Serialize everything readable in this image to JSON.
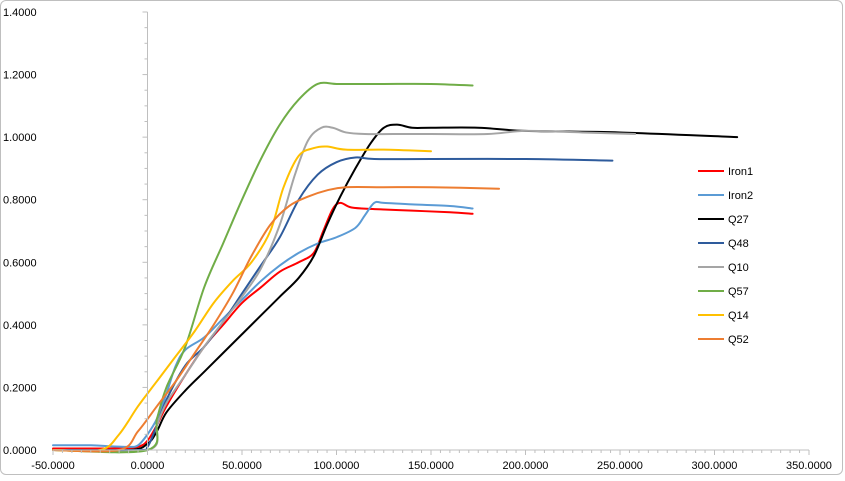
{
  "chart_data": {
    "type": "line",
    "title": "",
    "xlabel": "",
    "ylabel": "",
    "xlim": [
      -50,
      350
    ],
    "ylim": [
      0,
      1.4
    ],
    "x_ticks": [
      "-50.0000",
      "0.0000",
      "50.0000",
      "100.0000",
      "150.0000",
      "200.0000",
      "250.0000",
      "300.0000",
      "350.0000"
    ],
    "y_ticks": [
      "0.0000",
      "0.2000",
      "0.4000",
      "0.6000",
      "0.8000",
      "1.0000",
      "1.2000",
      "1.4000"
    ],
    "grid": false,
    "legend_position": "right",
    "series": [
      {
        "name": "Iron1",
        "color": "#ff0000",
        "points": [
          [
            -50,
            0.005
          ],
          [
            -15,
            0.005
          ],
          [
            -5,
            0.01
          ],
          [
            0,
            0.03
          ],
          [
            5,
            0.08
          ],
          [
            10,
            0.14
          ],
          [
            20,
            0.24
          ],
          [
            30,
            0.33
          ],
          [
            40,
            0.4
          ],
          [
            50,
            0.47
          ],
          [
            60,
            0.52
          ],
          [
            70,
            0.57
          ],
          [
            80,
            0.6
          ],
          [
            88,
            0.63
          ],
          [
            93,
            0.7
          ],
          [
            98,
            0.77
          ],
          [
            102,
            0.79
          ],
          [
            108,
            0.775
          ],
          [
            120,
            0.77
          ],
          [
            140,
            0.765
          ],
          [
            160,
            0.76
          ],
          [
            172,
            0.755
          ]
        ]
      },
      {
        "name": "Iron2",
        "color": "#5b9bd5",
        "points": [
          [
            -50,
            0.015
          ],
          [
            -30,
            0.015
          ],
          [
            -20,
            0.012
          ],
          [
            -10,
            0.01
          ],
          [
            -5,
            0.015
          ],
          [
            0,
            0.05
          ],
          [
            5,
            0.1
          ],
          [
            10,
            0.18
          ],
          [
            15,
            0.27
          ],
          [
            20,
            0.32
          ],
          [
            30,
            0.36
          ],
          [
            40,
            0.42
          ],
          [
            50,
            0.48
          ],
          [
            60,
            0.54
          ],
          [
            70,
            0.59
          ],
          [
            80,
            0.63
          ],
          [
            90,
            0.66
          ],
          [
            100,
            0.68
          ],
          [
            110,
            0.71
          ],
          [
            115,
            0.75
          ],
          [
            120,
            0.79
          ],
          [
            125,
            0.79
          ],
          [
            140,
            0.785
          ],
          [
            160,
            0.78
          ],
          [
            172,
            0.772
          ]
        ]
      },
      {
        "name": "Q27",
        "color": "#000000",
        "points": [
          [
            -50,
            0.0
          ],
          [
            -10,
            0.0
          ],
          [
            0,
            0.02
          ],
          [
            5,
            0.06
          ],
          [
            10,
            0.12
          ],
          [
            20,
            0.19
          ],
          [
            30,
            0.25
          ],
          [
            40,
            0.31
          ],
          [
            50,
            0.37
          ],
          [
            60,
            0.43
          ],
          [
            70,
            0.49
          ],
          [
            80,
            0.55
          ],
          [
            88,
            0.62
          ],
          [
            95,
            0.72
          ],
          [
            102,
            0.81
          ],
          [
            110,
            0.9
          ],
          [
            118,
            0.98
          ],
          [
            125,
            1.03
          ],
          [
            132,
            1.04
          ],
          [
            140,
            1.03
          ],
          [
            150,
            1.03
          ],
          [
            175,
            1.03
          ],
          [
            200,
            1.02
          ],
          [
            250,
            1.015
          ],
          [
            312,
            1.0
          ]
        ]
      },
      {
        "name": "Q48",
        "color": "#2e5b9c",
        "points": [
          [
            -50,
            0.0
          ],
          [
            -5,
            0.0
          ],
          [
            0,
            0.01
          ],
          [
            5,
            0.08
          ],
          [
            10,
            0.16
          ],
          [
            20,
            0.27
          ],
          [
            30,
            0.33
          ],
          [
            40,
            0.41
          ],
          [
            50,
            0.5
          ],
          [
            60,
            0.59
          ],
          [
            70,
            0.68
          ],
          [
            80,
            0.8
          ],
          [
            90,
            0.88
          ],
          [
            100,
            0.92
          ],
          [
            110,
            0.935
          ],
          [
            120,
            0.93
          ],
          [
            150,
            0.93
          ],
          [
            200,
            0.93
          ],
          [
            246,
            0.925
          ]
        ]
      },
      {
        "name": "Q10",
        "color": "#a5a5a5",
        "points": [
          [
            -50,
            0.0
          ],
          [
            0,
            0.0
          ],
          [
            5,
            0.08
          ],
          [
            10,
            0.15
          ],
          [
            20,
            0.24
          ],
          [
            30,
            0.33
          ],
          [
            40,
            0.41
          ],
          [
            50,
            0.49
          ],
          [
            60,
            0.58
          ],
          [
            70,
            0.72
          ],
          [
            78,
            0.88
          ],
          [
            85,
            0.99
          ],
          [
            92,
            1.03
          ],
          [
            98,
            1.03
          ],
          [
            105,
            1.015
          ],
          [
            115,
            1.01
          ],
          [
            130,
            1.01
          ],
          [
            150,
            1.01
          ],
          [
            180,
            1.01
          ],
          [
            200,
            1.02
          ],
          [
            230,
            1.015
          ],
          [
            258,
            1.01
          ]
        ]
      },
      {
        "name": "Q57",
        "color": "#70ad47",
        "points": [
          [
            -50,
            0.0
          ],
          [
            0,
            0.0
          ],
          [
            5,
            0.1
          ],
          [
            10,
            0.2
          ],
          [
            20,
            0.33
          ],
          [
            30,
            0.52
          ],
          [
            40,
            0.66
          ],
          [
            50,
            0.8
          ],
          [
            60,
            0.93
          ],
          [
            70,
            1.04
          ],
          [
            80,
            1.12
          ],
          [
            90,
            1.17
          ],
          [
            100,
            1.17
          ],
          [
            110,
            1.17
          ],
          [
            125,
            1.17
          ],
          [
            150,
            1.17
          ],
          [
            172,
            1.165
          ]
        ]
      },
      {
        "name": "Q14",
        "color": "#ffc000",
        "points": [
          [
            -50,
            0.0
          ],
          [
            -25,
            0.0
          ],
          [
            -15,
            0.05
          ],
          [
            -5,
            0.14
          ],
          [
            5,
            0.22
          ],
          [
            15,
            0.3
          ],
          [
            25,
            0.38
          ],
          [
            35,
            0.47
          ],
          [
            45,
            0.54
          ],
          [
            55,
            0.6
          ],
          [
            65,
            0.7
          ],
          [
            72,
            0.84
          ],
          [
            80,
            0.94
          ],
          [
            88,
            0.965
          ],
          [
            95,
            0.97
          ],
          [
            105,
            0.96
          ],
          [
            125,
            0.96
          ],
          [
            150,
            0.955
          ]
        ]
      },
      {
        "name": "Q52",
        "color": "#ed7d31",
        "points": [
          [
            -50,
            0.0
          ],
          [
            -15,
            0.0
          ],
          [
            -5,
            0.06
          ],
          [
            5,
            0.14
          ],
          [
            15,
            0.22
          ],
          [
            25,
            0.31
          ],
          [
            35,
            0.4
          ],
          [
            45,
            0.5
          ],
          [
            55,
            0.62
          ],
          [
            65,
            0.72
          ],
          [
            75,
            0.78
          ],
          [
            85,
            0.81
          ],
          [
            95,
            0.83
          ],
          [
            105,
            0.84
          ],
          [
            125,
            0.84
          ],
          [
            150,
            0.84
          ],
          [
            186,
            0.835
          ]
        ]
      }
    ]
  }
}
